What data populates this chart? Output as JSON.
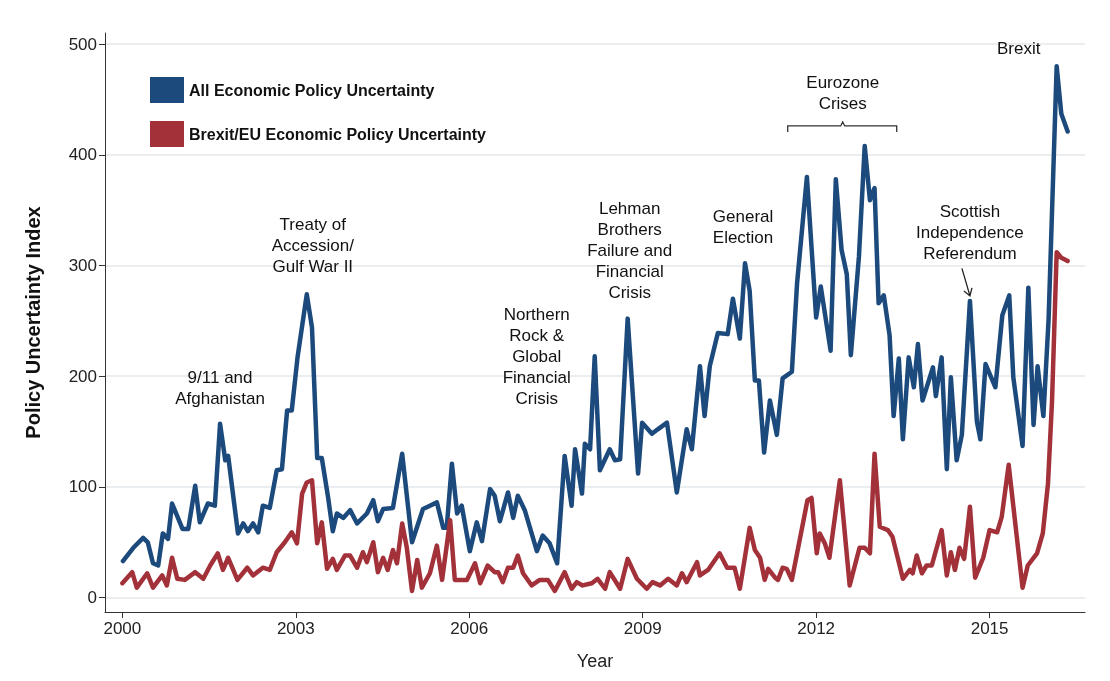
{
  "chart_data": {
    "type": "line",
    "xlabel": "Year",
    "ylabel": "Policy Uncertainty Index",
    "xlim": [
      1999.7,
      2016.65
    ],
    "xticks": [
      2000,
      2003,
      2006,
      2009,
      2012,
      2015
    ],
    "ylim": [
      -13,
      510
    ],
    "yticks": [
      0,
      100,
      200,
      300,
      400,
      500
    ],
    "grid": "y",
    "legend": "top left",
    "series": [
      {
        "name": "All Economic Policy Uncertainty",
        "color": "#1c4a7c",
        "x": [
          2000.01,
          2000.19,
          2000.36,
          2000.44,
          2000.53,
          2000.62,
          2000.7,
          2000.79,
          2000.86,
          2001.04,
          2001.14,
          2001.26,
          2001.34,
          2001.48,
          2001.6,
          2001.69,
          2001.78,
          2001.83,
          2002.0,
          2002.09,
          2002.17,
          2002.26,
          2002.35,
          2002.43,
          2002.55,
          2002.67,
          2002.76,
          2002.85,
          2002.93,
          2003.03,
          2003.19,
          2003.28,
          2003.37,
          2003.45,
          2003.56,
          2003.64,
          2003.71,
          2003.82,
          2003.94,
          2004.06,
          2004.23,
          2004.34,
          2004.42,
          2004.51,
          2004.68,
          2004.84,
          2005.01,
          2005.2,
          2005.32,
          2005.44,
          2005.55,
          2005.61,
          2005.7,
          2005.79,
          2005.87,
          2006.01,
          2006.13,
          2006.22,
          2006.36,
          2006.44,
          2006.53,
          2006.67,
          2006.76,
          2006.84,
          2006.96,
          2007.17,
          2007.27,
          2007.39,
          2007.52,
          2007.65,
          2007.77,
          2007.83,
          2007.95,
          2008.0,
          2008.09,
          2008.17,
          2008.26,
          2008.43,
          2008.52,
          2008.61,
          2008.74,
          2008.92,
          2008.99,
          2009.16,
          2009.26,
          2009.42,
          2009.59,
          2009.76,
          2009.85,
          2009.99,
          2010.07,
          2010.16,
          2010.3,
          2010.47,
          2010.56,
          2010.68,
          2010.77,
          2010.85,
          2010.94,
          2011.01,
          2011.1,
          2011.2,
          2011.32,
          2011.42,
          2011.58,
          2011.67,
          2011.84,
          2012.0,
          2012.08,
          2012.25,
          2012.34,
          2012.44,
          2012.53,
          2012.6,
          2012.74,
          2012.84,
          2012.93,
          2013.01,
          2013.08,
          2013.17,
          2013.27,
          2013.34,
          2013.43,
          2013.5,
          2013.6,
          2013.69,
          2013.76,
          2013.84,
          2014.02,
          2014.07,
          2014.17,
          2014.26,
          2014.33,
          2014.43,
          2014.52,
          2014.66,
          2014.78,
          2014.84,
          2014.93,
          2015.1,
          2015.22,
          2015.34,
          2015.41,
          2015.57,
          2015.67,
          2015.76,
          2015.83,
          2015.93,
          2016.02,
          2016.16,
          2016.24,
          2016.35
        ],
        "values": [
          33,
          45,
          54,
          50,
          31,
          29,
          58,
          53,
          85,
          62,
          62,
          101,
          68,
          85,
          83,
          157,
          124,
          128,
          58,
          67,
          60,
          67,
          59,
          83,
          81,
          115,
          116,
          169,
          169,
          217,
          274,
          244,
          126,
          126,
          90,
          60,
          76,
          72,
          79,
          67,
          76,
          88,
          69,
          80,
          81,
          130,
          50,
          80,
          83,
          86,
          63,
          63,
          121,
          76,
          83,
          42,
          68,
          51,
          98,
          92,
          69,
          95,
          72,
          92,
          79,
          42,
          56,
          49,
          31,
          128,
          83,
          134,
          94,
          139,
          134,
          218,
          115,
          134,
          124,
          125,
          252,
          112,
          158,
          148,
          152,
          158,
          95,
          152,
          134,
          209,
          164,
          209,
          239,
          238,
          270,
          234,
          302,
          277,
          196,
          196,
          131,
          178,
          147,
          198,
          204,
          284,
          380,
          253,
          281,
          223,
          378,
          314,
          292,
          219,
          308,
          408,
          359,
          370,
          266,
          273,
          237,
          164,
          216,
          143,
          217,
          190,
          229,
          178,
          208,
          182,
          217,
          116,
          199,
          124,
          147,
          268,
          159,
          143,
          211,
          190,
          255,
          273,
          199,
          137,
          280,
          156,
          209,
          164,
          251,
          480,
          437,
          421
        ]
      },
      {
        "name": "Brexit/EU Economic Policy Uncertainty",
        "color": "#a3313a",
        "x": [
          2000.0,
          2000.17,
          2000.25,
          2000.43,
          2000.53,
          2000.69,
          2000.77,
          2000.86,
          2000.95,
          2001.08,
          2001.26,
          2001.4,
          2001.52,
          2001.65,
          2001.74,
          2001.83,
          2001.99,
          2002.16,
          2002.26,
          2002.43,
          2002.55,
          2002.67,
          2002.81,
          2002.93,
          2003.02,
          2003.11,
          2003.19,
          2003.28,
          2003.37,
          2003.45,
          2003.54,
          2003.64,
          2003.71,
          2003.85,
          2003.94,
          2004.06,
          2004.16,
          2004.23,
          2004.34,
          2004.42,
          2004.51,
          2004.59,
          2004.68,
          2004.75,
          2004.84,
          2004.92,
          2005.01,
          2005.1,
          2005.18,
          2005.32,
          2005.44,
          2005.53,
          2005.67,
          2005.75,
          2005.96,
          2006.1,
          2006.19,
          2006.32,
          2006.44,
          2006.5,
          2006.58,
          2006.67,
          2006.76,
          2006.84,
          2006.93,
          2007.08,
          2007.22,
          2007.36,
          2007.48,
          2007.65,
          2007.77,
          2007.86,
          2007.96,
          2008.12,
          2008.22,
          2008.35,
          2008.43,
          2008.61,
          2008.74,
          2008.9,
          2009.07,
          2009.17,
          2009.3,
          2009.44,
          2009.59,
          2009.68,
          2009.76,
          2009.94,
          2009.99,
          2010.13,
          2010.33,
          2010.46,
          2010.59,
          2010.68,
          2010.85,
          2010.94,
          2011.03,
          2011.11,
          2011.17,
          2011.29,
          2011.34,
          2011.42,
          2011.49,
          2011.58,
          2011.85,
          2011.92,
          2012.01,
          2012.06,
          2012.15,
          2012.23,
          2012.41,
          2012.58,
          2012.75,
          2012.84,
          2012.93,
          2013.01,
          2013.1,
          2013.24,
          2013.32,
          2013.5,
          2013.62,
          2013.67,
          2013.74,
          2013.83,
          2013.91,
          2014.0,
          2014.17,
          2014.26,
          2014.33,
          2014.4,
          2014.48,
          2014.56,
          2014.66,
          2014.75,
          2014.89,
          2015.0,
          2015.13,
          2015.21,
          2015.33,
          2015.47,
          2015.57,
          2015.66,
          2015.82,
          2015.92,
          2016.01,
          2016.08,
          2016.16,
          2016.24,
          2016.35
        ],
        "values": [
          13,
          23,
          9,
          22,
          9,
          20,
          11,
          36,
          17,
          16,
          23,
          17,
          29,
          40,
          25,
          36,
          16,
          27,
          20,
          27,
          25,
          41,
          50,
          59,
          49,
          94,
          104,
          106,
          49,
          68,
          26,
          35,
          25,
          38,
          38,
          27,
          41,
          32,
          50,
          23,
          36,
          25,
          43,
          31,
          67,
          45,
          6,
          34,
          9,
          22,
          47,
          16,
          70,
          16,
          16,
          31,
          13,
          29,
          23,
          23,
          14,
          27,
          27,
          38,
          22,
          11,
          16,
          16,
          6,
          23,
          8,
          14,
          11,
          13,
          17,
          8,
          23,
          8,
          35,
          17,
          8,
          14,
          11,
          17,
          11,
          22,
          14,
          32,
          20,
          25,
          40,
          27,
          27,
          8,
          63,
          43,
          36,
          16,
          26,
          18,
          16,
          27,
          26,
          16,
          88,
          90,
          40,
          58,
          49,
          36,
          106,
          11,
          45,
          45,
          40,
          130,
          64,
          61,
          55,
          17,
          25,
          22,
          38,
          22,
          29,
          29,
          61,
          20,
          41,
          25,
          45,
          35,
          82,
          18,
          36,
          61,
          59,
          73,
          120,
          55,
          9,
          29,
          40,
          58,
          103,
          178,
          312,
          307,
          304
        ]
      }
    ],
    "annotations": [
      {
        "text": "9/11 and\nAfghanistan",
        "x": 2001.69,
        "y": 157
      },
      {
        "text": "Treaty of\nAccession/\nGulf War II",
        "x": 2003.19,
        "y": 274
      },
      {
        "text": "Northern\nRock &\nGlobal\nFinancial\nCrisis",
        "x": 2008.17,
        "y": 218
      },
      {
        "text": "Lehman\nBrothers\nFailure and\nFinancial\nCrisis",
        "x": 2008.74,
        "y": 252
      },
      {
        "text": "General\nElection",
        "x": 2010.77,
        "y": 302
      },
      {
        "text": "Eurozone\nCrises",
        "x": 2012.84,
        "y": 408
      },
      {
        "text": "Scottish\nIndependence\nReferendum",
        "x": 2014.66,
        "y": 268
      },
      {
        "text": "Brexit",
        "x": 2016.16,
        "y": 480
      }
    ]
  }
}
